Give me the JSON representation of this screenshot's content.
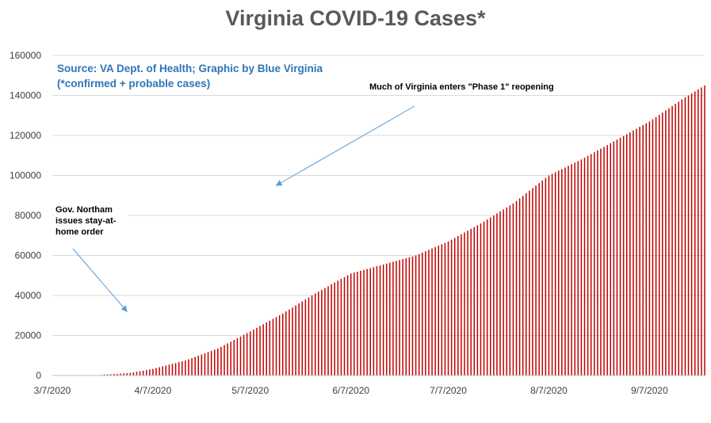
{
  "chart_data": {
    "type": "bar",
    "title": "Virginia COVID-19 Cases*",
    "subtitle_lines": [
      "Source: VA Dept. of Health; Graphic by Blue Virginia",
      "(*confirmed + probable cases)"
    ],
    "xlabel": "",
    "ylabel": "",
    "ylim": [
      0,
      160000
    ],
    "yticks": [
      0,
      20000,
      40000,
      60000,
      80000,
      100000,
      120000,
      140000,
      160000
    ],
    "xticks": [
      "3/7/2020",
      "4/7/2020",
      "5/7/2020",
      "6/7/2020",
      "7/7/2020",
      "8/7/2020",
      "9/7/2020"
    ],
    "x_start": "3/7/2020",
    "x_end": "9/24/2020",
    "grid": true,
    "bar_color": "#c00000",
    "anchor_points": [
      {
        "date": "3/7/2020",
        "cases": 0
      },
      {
        "date": "3/20/2020",
        "cases": 100
      },
      {
        "date": "3/31/2020",
        "cases": 1250
      },
      {
        "date": "4/7/2020",
        "cases": 3300
      },
      {
        "date": "4/17/2020",
        "cases": 7500
      },
      {
        "date": "4/27/2020",
        "cases": 13500
      },
      {
        "date": "5/7/2020",
        "cases": 22000
      },
      {
        "date": "5/17/2020",
        "cases": 31000
      },
      {
        "date": "5/27/2020",
        "cases": 41000
      },
      {
        "date": "6/7/2020",
        "cases": 51000
      },
      {
        "date": "6/17/2020",
        "cases": 55500
      },
      {
        "date": "6/27/2020",
        "cases": 60000
      },
      {
        "date": "7/7/2020",
        "cases": 67000
      },
      {
        "date": "7/17/2020",
        "cases": 76000
      },
      {
        "date": "7/27/2020",
        "cases": 86000
      },
      {
        "date": "8/7/2020",
        "cases": 100000
      },
      {
        "date": "8/17/2020",
        "cases": 108000
      },
      {
        "date": "8/27/2020",
        "cases": 117000
      },
      {
        "date": "9/7/2020",
        "cases": 127000
      },
      {
        "date": "9/17/2020",
        "cases": 138000
      },
      {
        "date": "9/24/2020",
        "cases": 145000
      }
    ],
    "annotations": [
      {
        "text": "Much of Virginia enters \"Phase 1\" reopening",
        "date": "5/15/2020",
        "cases": 95000
      },
      {
        "text": "Gov. Northam issues stay-at-home order",
        "date": "3/30/2020",
        "cases": 32000
      }
    ]
  }
}
